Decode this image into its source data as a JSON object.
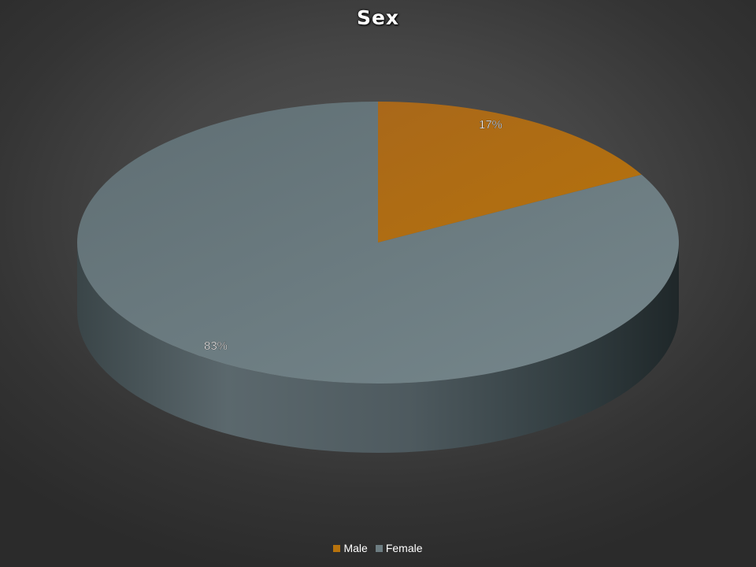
{
  "chart_data": {
    "type": "pie",
    "title": "Sex",
    "categories": [
      "Male",
      "Female"
    ],
    "values": [
      17,
      83
    ],
    "labels": [
      "17%",
      "83%"
    ],
    "colors": [
      "#b8730d",
      "#6d7d82"
    ],
    "legend_position": "bottom",
    "three_d": true
  }
}
